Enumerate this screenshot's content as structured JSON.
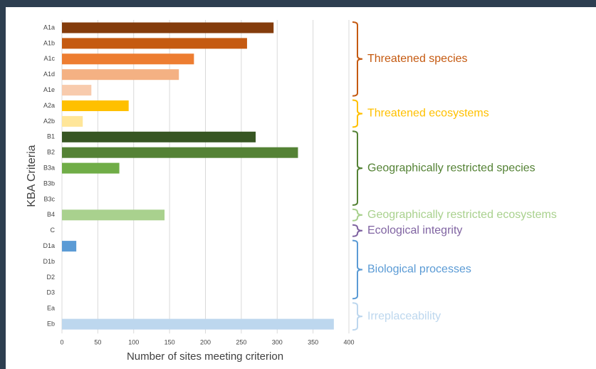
{
  "chart_data": {
    "type": "barh",
    "ylabel": "KBA Criteria",
    "xlabel": "Number of sites meeting criterion",
    "categories": [
      "A1a",
      "A1b",
      "A1c",
      "A1d",
      "A1e",
      "A2a",
      "A2b",
      "B1",
      "B2",
      "B3a",
      "B3b",
      "B3c",
      "B4",
      "C",
      "D1a",
      "D1b",
      "D2",
      "D3",
      "Ea",
      "Eb"
    ],
    "values": [
      295,
      258,
      184,
      163,
      41,
      93,
      29,
      270,
      329,
      80,
      0,
      0,
      143,
      0,
      20,
      0,
      0,
      0,
      0,
      379
    ],
    "colors": [
      "#843c0c",
      "#c55a11",
      "#ed7d31",
      "#f4b183",
      "#f8cbad",
      "#ffc000",
      "#ffe699",
      "#375623",
      "#548235",
      "#70ad47",
      "#70ad47",
      "#70ad47",
      "#a9d18e",
      "#8064a2",
      "#5b9bd5",
      "#5b9bd5",
      "#5b9bd5",
      "#5b9bd5",
      "#bdd7ee",
      "#bdd7ee"
    ],
    "xlim": [
      0,
      400
    ],
    "xticks": [
      0,
      50,
      100,
      150,
      200,
      250,
      300,
      350,
      400
    ],
    "grid": true,
    "groups": [
      {
        "label": "Threatened species",
        "color": "#c55a11",
        "from": "A1a",
        "to": "A1e"
      },
      {
        "label": "Threatened ecosystems",
        "color": "#ffc000",
        "from": "A2a",
        "to": "A2b"
      },
      {
        "label": "Geographically restricted species",
        "color": "#548235",
        "from": "B1",
        "to": "B3c"
      },
      {
        "label": "Geographically restricted ecosystems",
        "color": "#a9d18e",
        "from": "B4",
        "to": "B4"
      },
      {
        "label": "Ecological integrity",
        "color": "#8064a2",
        "from": "C",
        "to": "C"
      },
      {
        "label": "Biological processes",
        "color": "#5b9bd5",
        "from": "D1a",
        "to": "D3"
      },
      {
        "label": "Irreplaceability",
        "color": "#bdd7ee",
        "from": "Ea",
        "to": "Eb"
      }
    ]
  }
}
